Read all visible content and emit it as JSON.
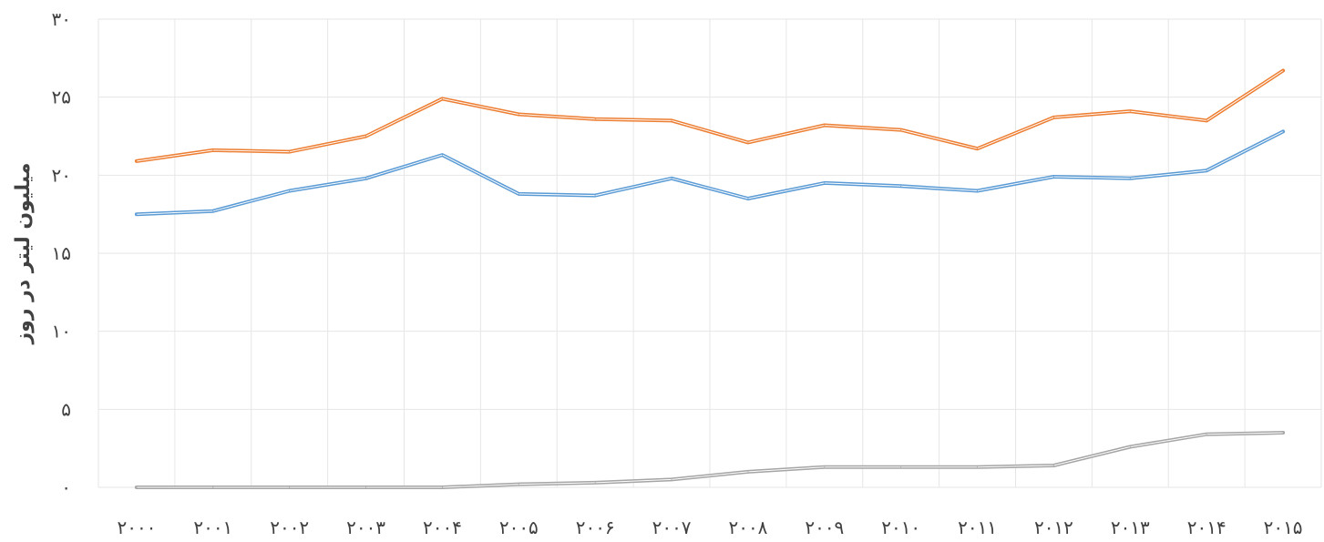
{
  "chart_data": {
    "type": "line",
    "ylabel": "میلیون لیتر در روز",
    "xlabel": "",
    "title": "",
    "categories": [
      "۲۰۰۰",
      "۲۰۰۱",
      "۲۰۰۲",
      "۲۰۰۳",
      "۲۰۰۴",
      "۲۰۰۵",
      "۲۰۰۶",
      "۲۰۰۷",
      "۲۰۰۸",
      "۲۰۰۹",
      "۲۰۱۰",
      "۲۰۱۱",
      "۲۰۱۲",
      "۲۰۱۳",
      "۲۰۱۴",
      "۲۰۱۵"
    ],
    "yticks": [
      "۰",
      "۵",
      "۱۰",
      "۱۵",
      "۲۰",
      "۲۵",
      "۳۰"
    ],
    "ylim": [
      0,
      30
    ],
    "grid": true,
    "legend": "none",
    "series": [
      {
        "color": "#ED7D31",
        "values": [
          20.9,
          21.6,
          21.5,
          22.5,
          24.9,
          23.9,
          23.6,
          23.5,
          22.1,
          23.2,
          22.9,
          21.7,
          23.7,
          24.1,
          23.5,
          26.7
        ]
      },
      {
        "color": "#5B9BD5",
        "values": [
          17.5,
          17.7,
          19.0,
          19.8,
          21.3,
          18.8,
          18.7,
          19.8,
          18.5,
          19.5,
          19.3,
          19.0,
          19.9,
          19.8,
          20.3,
          22.8
        ]
      },
      {
        "color": "#A5A5A5",
        "values": [
          0.0,
          0.0,
          0.0,
          0.0,
          0.0,
          0.2,
          0.3,
          0.5,
          1.0,
          1.3,
          1.3,
          1.3,
          1.4,
          2.6,
          3.4,
          3.5
        ]
      }
    ]
  },
  "colors": {
    "grid": "#E6E6E6",
    "text": "#404040"
  }
}
